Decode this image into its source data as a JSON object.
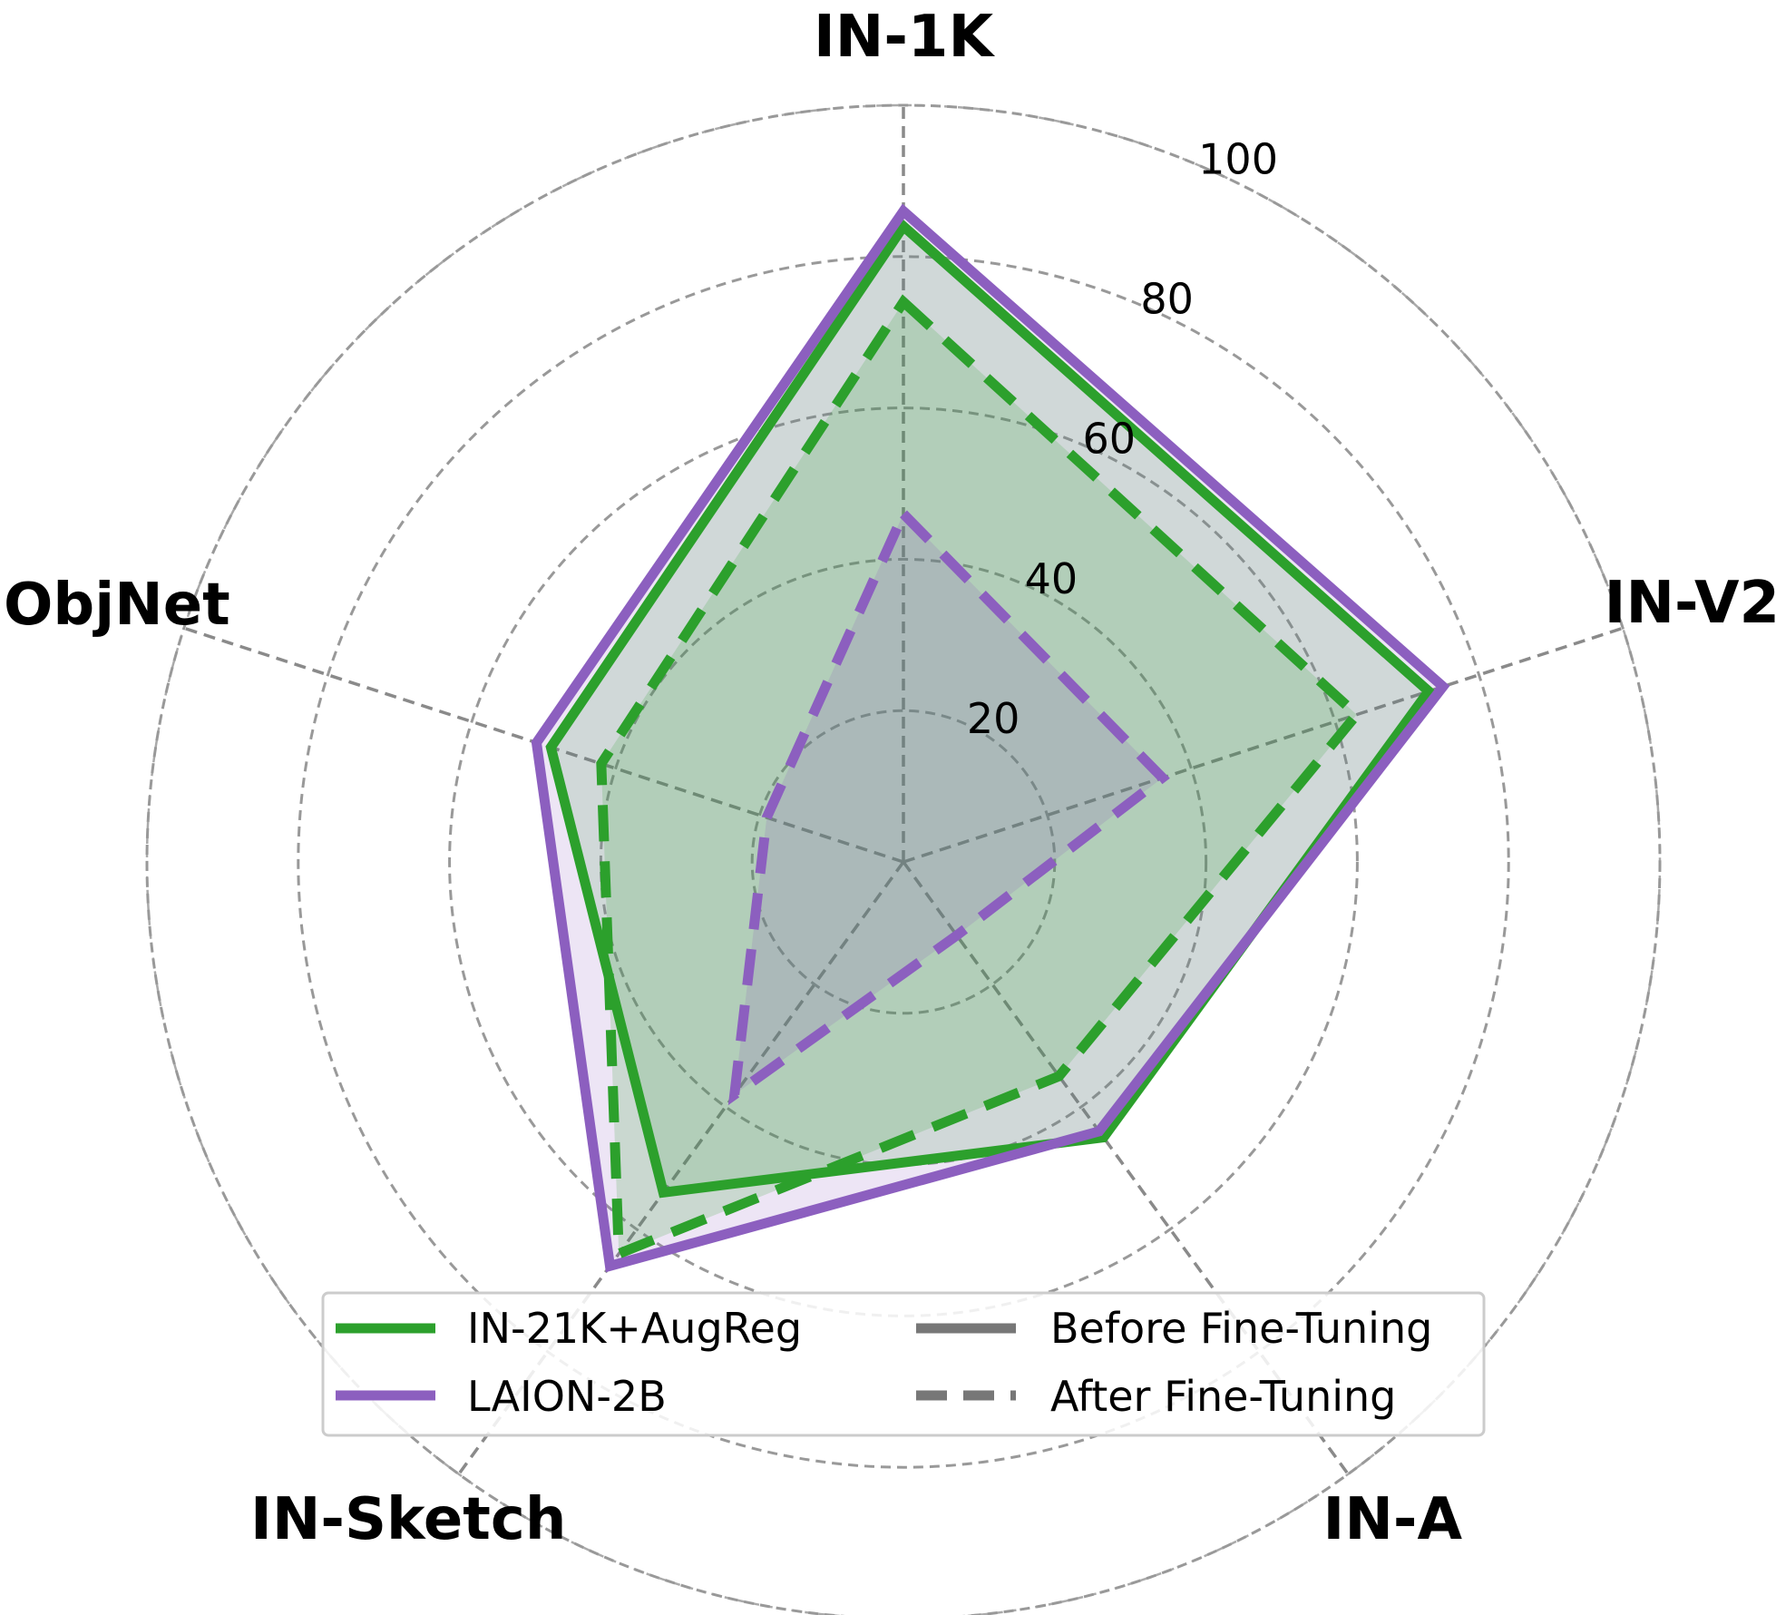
{
  "chart_data": {
    "type": "radar",
    "axes": [
      "IN-1K",
      "IN-V2",
      "IN-A",
      "IN-Sketch",
      "ObjNet"
    ],
    "radial_ticks": [
      "20",
      "40",
      "60",
      "80",
      "100"
    ],
    "rlim": [
      0,
      100
    ],
    "grid": true,
    "colors": {
      "IN-21K+AugReg": "#2ca02c",
      "LAION-2B": "#8c5fbf"
    },
    "series": [
      {
        "name": "IN-21K+AugReg",
        "stage": "Before Fine-Tuning",
        "values": [
          84,
          73,
          45,
          54,
          49
        ]
      },
      {
        "name": "LAION-2B",
        "stage": "Before Fine-Tuning",
        "values": [
          86,
          75,
          44,
          66,
          51
        ]
      },
      {
        "name": "IN-21K+AugReg",
        "stage": "After Fine-Tuning",
        "values": [
          74,
          63,
          35,
          64,
          42
        ]
      },
      {
        "name": "LAION-2B",
        "stage": "After Fine-Tuning",
        "values": [
          46,
          36,
          12,
          38,
          19
        ]
      }
    ],
    "legend": {
      "position": "lower center",
      "entries": [
        "IN-21K+AugReg",
        "LAION-2B",
        "Before Fine-Tuning",
        "After Fine-Tuning"
      ]
    }
  }
}
